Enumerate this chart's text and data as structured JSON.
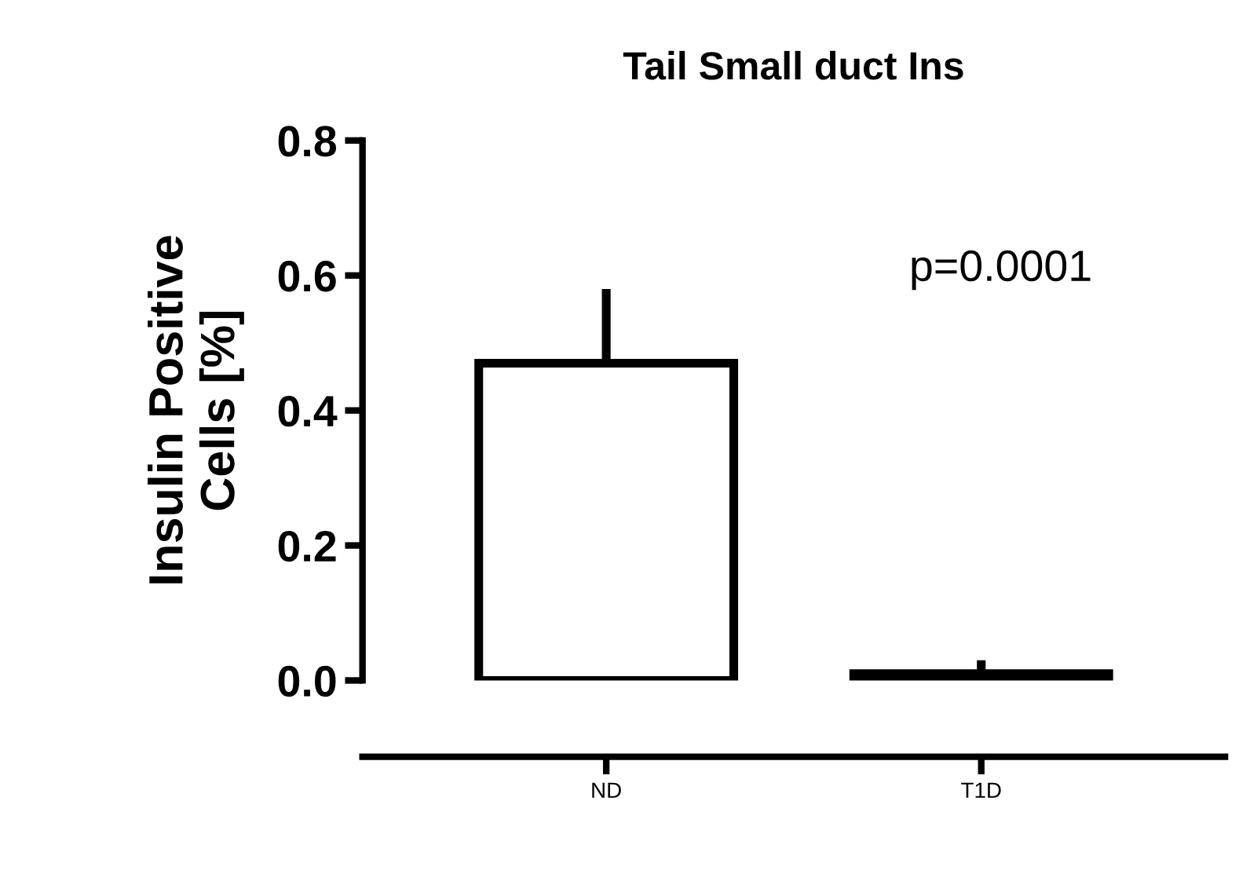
{
  "chart_data": {
    "type": "bar",
    "title": "Tail Small duct Ins",
    "ylabel": "Insulin Positive\nCells [%]",
    "categories": [
      "ND",
      "T1D"
    ],
    "values": [
      0.47,
      0.01
    ],
    "errors": [
      [
        0.47,
        0.58
      ],
      [
        0.01,
        0.03
      ]
    ],
    "color": "#ffffff",
    "ylim": [
      0,
      0.8
    ],
    "yticks": [
      {
        "value": 0,
        "label": "0.0"
      },
      {
        "value": 0.2,
        "label": "0.2"
      },
      {
        "value": 0.4,
        "label": "0.4"
      },
      {
        "value": 0.6,
        "label": "0.6"
      },
      {
        "value": 0.8,
        "label": "0.8"
      }
    ],
    "annotations": [
      "p=0.0001"
    ],
    "grid": false,
    "legend": false
  }
}
